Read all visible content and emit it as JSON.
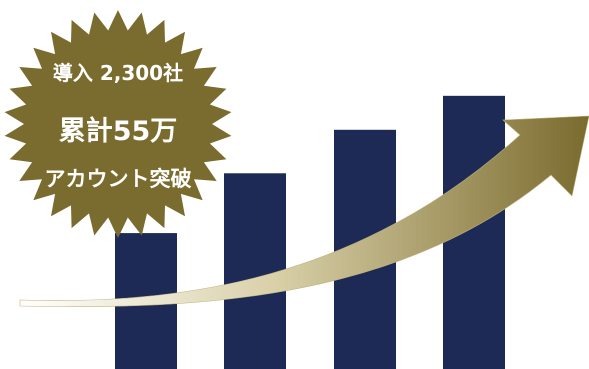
{
  "badge": {
    "line1": "導入 2,300社",
    "line2": "累計55万",
    "line3": "アカウント突破",
    "color": "#7a6b2e"
  },
  "chart_data": {
    "type": "bar",
    "categories": [
      "",
      "",
      "",
      ""
    ],
    "values": [
      1.0,
      1.44,
      1.76,
      2.01
    ],
    "ylim": [
      0,
      2.2
    ],
    "grid": false,
    "bar_color": "#1c2a55",
    "trend_arrow": {
      "direction": "up-right",
      "gradient": [
        "#ffffff",
        "#7a6b2e"
      ]
    }
  }
}
